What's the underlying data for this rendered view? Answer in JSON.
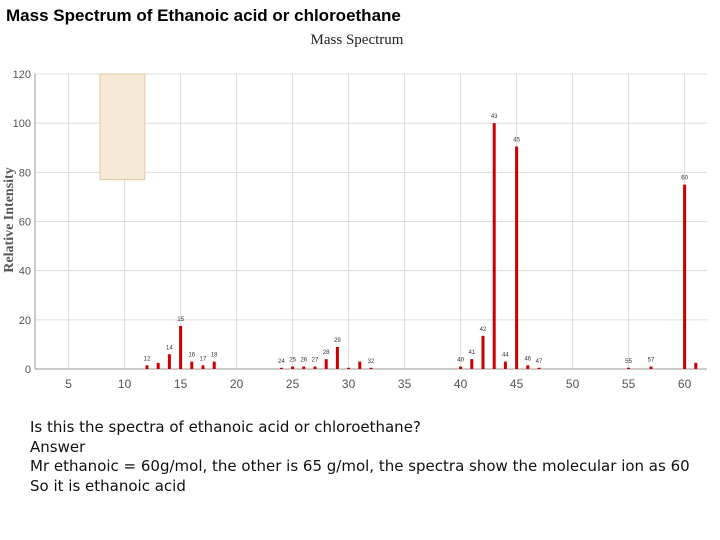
{
  "page": {
    "title": "Mass Spectrum of Ethanoic acid or chloroethane"
  },
  "question": {
    "prompt": "Is this the spectra of ethanoic acid or chloroethane?",
    "answer_label": "Answer",
    "line1": "Mr ethanoic  = 60g/mol, the other is 65 g/mol, the spectra show the molecular ion as 60",
    "line2": "So it is ethanoic acid"
  },
  "colors": {
    "bar": "#cc0000",
    "grid": "#dcdcdc",
    "highlight_fill": "#f5e8d5",
    "highlight_stroke": "#e2c9a4"
  },
  "chart_data": {
    "type": "bar",
    "title": "Mass Spectrum",
    "ylabel": "Relative Intensity",
    "xlabel": "",
    "xlim": [
      2,
      62
    ],
    "ylim": [
      0,
      120
    ],
    "xticks": [
      5,
      10,
      15,
      20,
      25,
      30,
      35,
      40,
      45,
      50,
      55,
      60
    ],
    "yticks": [
      0,
      20,
      40,
      60,
      80,
      100,
      120
    ],
    "grid": true,
    "highlight": {
      "x": [
        7.8,
        11.8
      ],
      "y": [
        77,
        120
      ]
    },
    "peaks": [
      {
        "mz": 12,
        "intensity": 1.5,
        "label": "12"
      },
      {
        "mz": 13,
        "intensity": 2.5,
        "label": ""
      },
      {
        "mz": 14,
        "intensity": 6,
        "label": "14"
      },
      {
        "mz": 15,
        "intensity": 17.5,
        "label": "15"
      },
      {
        "mz": 16,
        "intensity": 3,
        "label": "16"
      },
      {
        "mz": 17,
        "intensity": 1.5,
        "label": "17"
      },
      {
        "mz": 18,
        "intensity": 3,
        "label": "18"
      },
      {
        "mz": 24,
        "intensity": 0.5,
        "label": "24"
      },
      {
        "mz": 25,
        "intensity": 1,
        "label": "25"
      },
      {
        "mz": 26,
        "intensity": 1,
        "label": "26"
      },
      {
        "mz": 27,
        "intensity": 1,
        "label": "27"
      },
      {
        "mz": 28,
        "intensity": 4,
        "label": "28"
      },
      {
        "mz": 29,
        "intensity": 9,
        "label": "29"
      },
      {
        "mz": 30,
        "intensity": 0.5,
        "label": ""
      },
      {
        "mz": 31,
        "intensity": 3,
        "label": ""
      },
      {
        "mz": 32,
        "intensity": 0.5,
        "label": "32"
      },
      {
        "mz": 40,
        "intensity": 1,
        "label": "40"
      },
      {
        "mz": 41,
        "intensity": 4,
        "label": "41"
      },
      {
        "mz": 42,
        "intensity": 13.5,
        "label": "42"
      },
      {
        "mz": 43,
        "intensity": 100,
        "label": "43"
      },
      {
        "mz": 44,
        "intensity": 3,
        "label": "44"
      },
      {
        "mz": 45,
        "intensity": 90.5,
        "label": "45"
      },
      {
        "mz": 46,
        "intensity": 1.5,
        "label": "46"
      },
      {
        "mz": 47,
        "intensity": 0.5,
        "label": "47"
      },
      {
        "mz": 55,
        "intensity": 0.5,
        "label": "55"
      },
      {
        "mz": 57,
        "intensity": 1,
        "label": "57"
      },
      {
        "mz": 60,
        "intensity": 75,
        "label": "60"
      },
      {
        "mz": 61,
        "intensity": 2.5,
        "label": ""
      }
    ]
  }
}
